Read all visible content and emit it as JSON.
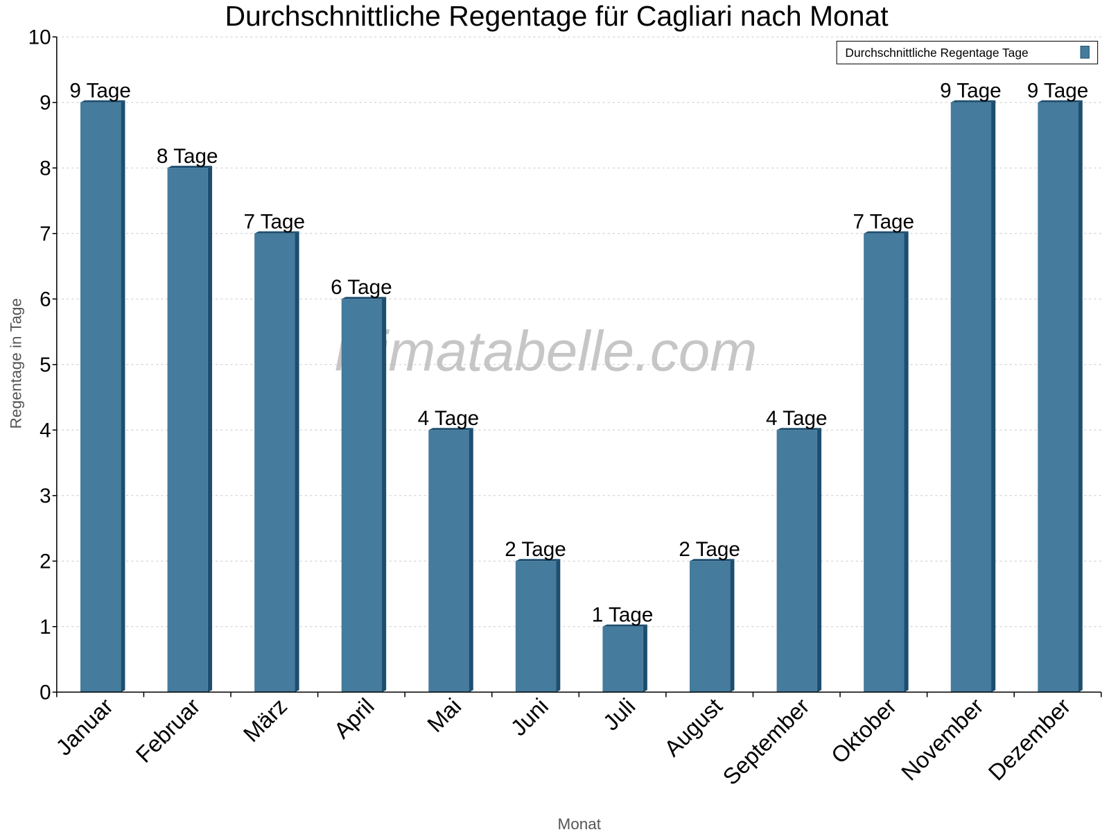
{
  "chart_data": {
    "type": "bar",
    "title": "Durchschnittliche Regentage für Cagliari nach Monat",
    "xlabel": "Monat",
    "ylabel": "Regentage in Tage",
    "ylim": [
      0,
      10
    ],
    "yticks": [
      "0",
      "1",
      "2",
      "3",
      "4",
      "5",
      "6",
      "7",
      "8",
      "9",
      "10"
    ],
    "grid": true,
    "legend_position": "top-right",
    "categories": [
      "Januar",
      "Februar",
      "März",
      "April",
      "Mai",
      "Juni",
      "Juli",
      "August",
      "September",
      "Oktober",
      "November",
      "Dezember"
    ],
    "series": [
      {
        "name": "Durchschnittliche Regentage Tage",
        "values": [
          9,
          8,
          7,
          6,
          4,
          2,
          1,
          2,
          4,
          7,
          9,
          9
        ],
        "labels": [
          "9 Tage",
          "8 Tage",
          "7 Tage",
          "6 Tage",
          "4 Tage",
          "2 Tage",
          "1 Tage",
          "2 Tage",
          "4 Tage",
          "7 Tage",
          "9 Tage",
          "9 Tage"
        ],
        "color": "#457b9d",
        "side_color": "#1d4e6f"
      }
    ],
    "watermark": "klimatabelle.com"
  }
}
